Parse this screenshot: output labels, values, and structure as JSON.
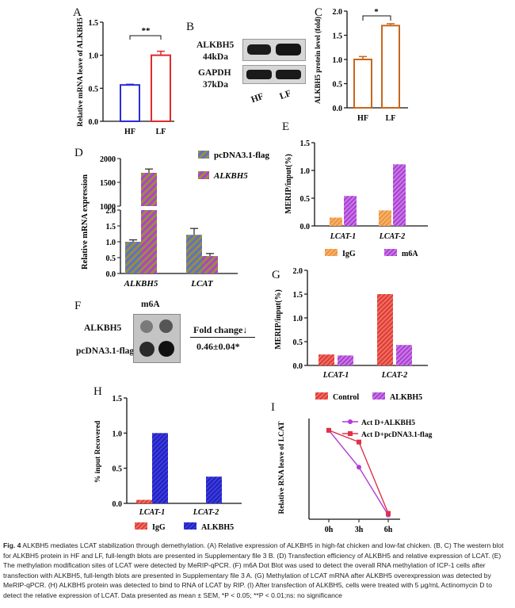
{
  "panels": {
    "A": {
      "letter": "A",
      "ylabel": "Relative mRNA leave of ALKBH5",
      "yticks": [
        "0.0",
        "0.5",
        "1.0",
        "1.5"
      ],
      "sig": "**"
    },
    "B": {
      "letter": "B",
      "alk": "ALKBH5",
      "alk_kda": "44kDa",
      "gapdh": "GAPDH",
      "gapdh_kda": "37kDa",
      "lanes": [
        "HF",
        "LF"
      ]
    },
    "C": {
      "letter": "C",
      "ylabel": "ALKBH5 protein level (fold)",
      "yticks": [
        "0.0",
        "0.5",
        "1.0",
        "1.5",
        "2.0"
      ],
      "sig": "*"
    },
    "D": {
      "letter": "D",
      "ylabel": "Relative mRNA expression",
      "yticks_low": [
        "0.0",
        "0.5",
        "1.0",
        "1.5",
        "2.0"
      ],
      "yticks_high": [
        "1000",
        "1500",
        "2000"
      ]
    },
    "E": {
      "letter": "E",
      "ylabel": "MERIP/input(%)",
      "yticks": [
        "0.0",
        "0.5",
        "1.0",
        "1.5"
      ]
    },
    "F": {
      "letter": "F",
      "header": "m6A",
      "row1": "ALKBH5",
      "row2": "pcDNA3.1-flag",
      "fold_label": "Fold change↓",
      "fold_value": "0.46±0.04*"
    },
    "G": {
      "letter": "G",
      "ylabel": "MERIP/input(%)",
      "yticks": [
        "0.0",
        "0.5",
        "1.0",
        "1.5",
        "2.0"
      ]
    },
    "H": {
      "letter": "H",
      "ylabel": "% input Recovered",
      "yticks": [
        "0.0",
        "0.5",
        "1.0",
        "1.5"
      ]
    },
    "I": {
      "letter": "I",
      "ylabel": "Relative RNA leave of LCAT",
      "xticks": [
        "0h",
        "3h",
        "6h"
      ]
    }
  },
  "chart_data": [
    {
      "panel": "A",
      "type": "bar",
      "categories": [
        "HF",
        "LF"
      ],
      "values": [
        0.55,
        1.0
      ],
      "errors": [
        0.01,
        0.06
      ],
      "ylim": [
        0,
        1.5
      ],
      "colors": [
        "#2b2bd8",
        "#e02a2a"
      ]
    },
    {
      "panel": "C",
      "type": "bar",
      "categories": [
        "HF",
        "LF"
      ],
      "values": [
        1.0,
        1.7
      ],
      "errors": [
        0.06,
        0.04
      ],
      "ylim": [
        0,
        2.0
      ],
      "colors": [
        "#c8661c",
        "#c8661c"
      ]
    },
    {
      "panel": "D",
      "type": "bar",
      "categories": [
        "ALKBH5",
        "LCAT"
      ],
      "series": [
        {
          "name": "pcDNA3.1-flag",
          "values": [
            1.0,
            1.22
          ],
          "errors": [
            0.06,
            0.2
          ]
        },
        {
          "name": "ALKBH5",
          "values": [
            1700,
            0.55
          ],
          "errors": [
            80,
            0.08
          ]
        }
      ],
      "ylim": [
        0,
        2000
      ],
      "axis_break": [
        2.0,
        1000
      ]
    },
    {
      "panel": "E",
      "type": "bar",
      "categories": [
        "LCAT-1",
        "LCAT-2"
      ],
      "series": [
        {
          "name": "IgG",
          "values": [
            0.15,
            0.28
          ]
        },
        {
          "name": "m6A",
          "values": [
            0.54,
            1.11
          ]
        }
      ],
      "ylim": [
        0,
        1.5
      ]
    },
    {
      "panel": "G",
      "type": "bar",
      "categories": [
        "LCAT-1",
        "LCAT-2"
      ],
      "series": [
        {
          "name": "Control",
          "values": [
            0.23,
            1.5
          ]
        },
        {
          "name": "ALKBH5",
          "values": [
            0.21,
            0.43
          ]
        }
      ],
      "ylim": [
        0,
        2.0
      ]
    },
    {
      "panel": "H",
      "type": "bar",
      "categories": [
        "LCAT-1",
        "LCAT-2"
      ],
      "series": [
        {
          "name": "IgG",
          "values": [
            0.05,
            0.0
          ]
        },
        {
          "name": "ALKBH5",
          "values": [
            1.0,
            0.38
          ]
        }
      ],
      "ylim": [
        0,
        1.5
      ]
    },
    {
      "panel": "I",
      "type": "line",
      "x": [
        "0h",
        "3h",
        "6h"
      ],
      "series": [
        {
          "name": "Act D+ALKBH5",
          "values": [
            1.06,
            0.62,
            0.05
          ],
          "color": "#b03ad8"
        },
        {
          "name": "Act D+pcDNA3.1-flag",
          "values": [
            1.06,
            0.92,
            0.07
          ],
          "color": "#e0304a"
        }
      ]
    }
  ],
  "caption": {
    "fig": "Fig. 4",
    "text": "ALKBH5 mediates LCAT stabilization through demethylation. (A) Relative expression of ALKBH5 in high-fat chicken and low-fat chicken. (B, C) The western blot for ALKBH5 protein in HF and LF, full-length blots are presented in Supplementary file 3 B. (D) Transfection efficiency of ALKBH5 and relative expression of LCAT. (E) The methylation modification sites of LCAT were detected by MeRIP-qPCR. (F) m6A Dot Blot was used to detect the overall RNA methylation of ICP-1 cells after transfection with ALKBH5, full-length blots are presented in Supplementary file 3 A. (G) Methylation of LCAT mRNA after ALKBH5 overexpression was detected by MeRIP-qPCR. (H) ALKBH5 protein was detected to bind to RNA of LCAT by RIP. (I) After transfection of ALKBH5, cells were treated with 5 μg/mL Actinomycin D to detect the relative expression of LCAT. Data presented as mean ± SEM, *P < 0.05; **P < 0.01;ns: no significance"
  },
  "colors": {
    "pattern_blue": "#5a72c8",
    "pattern_olive": "#9a8e3a",
    "pattern_purple": "#b040d0",
    "orange": "#f0a050",
    "red": "#e8402f"
  }
}
